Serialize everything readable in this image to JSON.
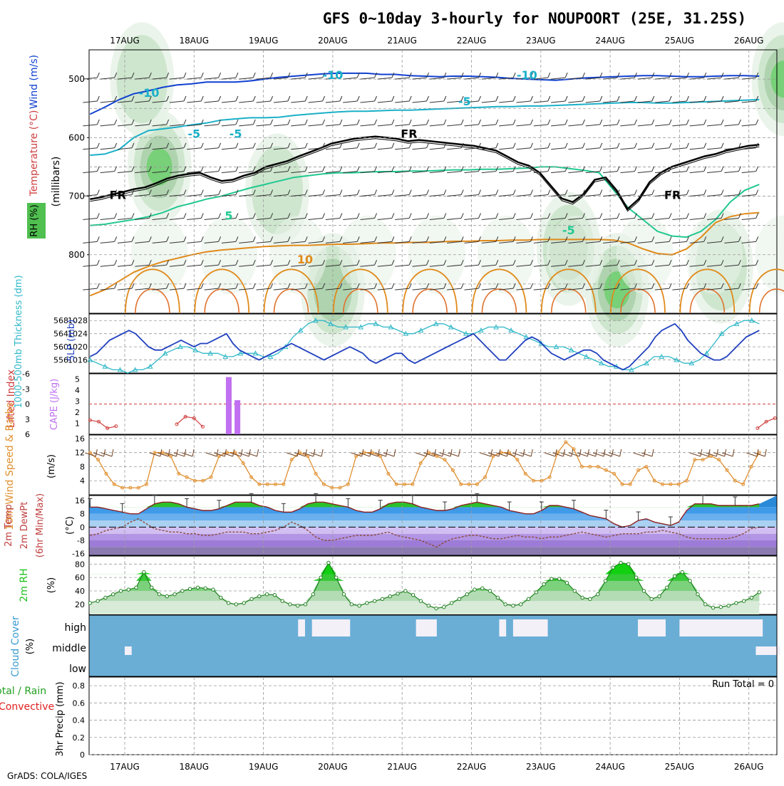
{
  "title": "GFS 0~10day 3-hourly for NOUPOORT (25E, 31.25S)",
  "credit": "GrADS: COLA/IGES",
  "colors": {
    "temp_cool": "#1040d0",
    "temp_mid": "#1ab0c8",
    "temp_warm": "#e08a1a",
    "slp": "#2040c0",
    "thickness": "#30b8c8",
    "cape": "#c070f0",
    "lifted": "#d04040",
    "wind": "#e09030",
    "rh": "#20c020",
    "cloud": "#6aaed6",
    "precip_total": "#20a020",
    "precip_conv": "#e02020"
  },
  "chart_data": [
    {
      "type": "heatmap",
      "name": "upper-air cross-section",
      "labels": {
        "left_top": "Wind (m/s)",
        "left_mid": "Temperature (°C)",
        "left_rh": "RH (%)",
        "axis": "(millibars)"
      },
      "x_ticks": [
        "17AUG",
        "18AUG",
        "19AUG",
        "20AUG",
        "21AUG",
        "22AUG",
        "23AUG",
        "24AUG",
        "25AUG",
        "26AUG"
      ],
      "y_ticks": [
        "500",
        "600",
        "700",
        "800"
      ],
      "ylim": [
        450,
        900
      ],
      "contour_labels": [
        "-10",
        "-10",
        "-5",
        "-5",
        "-5",
        "FR",
        "FR",
        "FR",
        "-5",
        "5",
        "10",
        "-10"
      ],
      "freezing_level_mb": [
        705,
        702,
        697,
        693,
        688,
        685,
        678,
        670,
        665,
        662,
        660,
        668,
        674,
        672,
        665,
        660,
        650,
        645,
        640,
        632,
        625,
        618,
        610,
        606,
        602,
        600,
        598,
        600,
        602,
        606,
        604,
        606,
        608,
        610,
        612,
        614,
        618,
        622,
        632,
        642,
        648,
        660,
        682,
        704,
        710,
        696,
        672,
        668,
        690,
        722,
        705,
        676,
        660,
        650,
        644,
        638,
        632,
        628,
        622,
        618,
        614,
        612
      ],
      "isotherms": [
        {
          "label": "-10",
          "level": "cool",
          "values": [
            560,
            548,
            535,
            525,
            520,
            514,
            510,
            508,
            505,
            505,
            505,
            503,
            500,
            497,
            495,
            493,
            491,
            490,
            490,
            490,
            492,
            492,
            494,
            495,
            496,
            495,
            495,
            496,
            497,
            499,
            500,
            501,
            502,
            500,
            498,
            497,
            496,
            495,
            494,
            494,
            495,
            496,
            496,
            495,
            494,
            494,
            495
          ]
        },
        {
          "label": "-5",
          "level": "mid",
          "values": [
            630,
            628,
            620,
            600,
            588,
            585,
            582,
            578,
            575,
            570,
            568,
            566,
            566,
            565,
            562,
            560,
            558,
            556,
            555,
            555,
            554,
            553,
            553,
            552,
            551,
            550,
            549,
            548,
            547,
            547,
            546,
            546,
            545,
            544,
            543,
            542,
            541,
            540,
            540,
            541,
            541,
            540,
            539,
            538,
            537,
            536,
            535
          ]
        },
        {
          "label": "5",
          "level": "mid2",
          "values": [
            750,
            748,
            744,
            740,
            735,
            728,
            718,
            712,
            705,
            700,
            693,
            686,
            680,
            674,
            668,
            665,
            662,
            660,
            660,
            659,
            658,
            658,
            657,
            657,
            656,
            655,
            655,
            654,
            654,
            653,
            652,
            650,
            650,
            653,
            656,
            660,
            690,
            720,
            740,
            760,
            768,
            770,
            760,
            740,
            710,
            690,
            680
          ]
        },
        {
          "label": "10",
          "level": "warm",
          "values": [
            870,
            860,
            845,
            830,
            820,
            812,
            806,
            800,
            795,
            792,
            790,
            788,
            786,
            785,
            784,
            784,
            783,
            782,
            782,
            781,
            780,
            780,
            779,
            779,
            778,
            777,
            777,
            776,
            776,
            775,
            775,
            774,
            774,
            774,
            774,
            774,
            775,
            780,
            790,
            798,
            800,
            790,
            770,
            745,
            735,
            730,
            728
          ]
        }
      ],
      "rh_blobs": [
        {
          "day": 0.5,
          "mb": 650,
          "intensity": 3
        },
        {
          "day": 0.25,
          "mb": 500,
          "intensity": 1
        },
        {
          "day": 2.2,
          "mb": 690,
          "intensity": 1
        },
        {
          "day": 3.0,
          "mb": 860,
          "intensity": 2
        },
        {
          "day": 7.1,
          "mb": 860,
          "intensity": 3
        },
        {
          "day": 6.4,
          "mb": 790,
          "intensity": 2
        },
        {
          "day": 9.5,
          "mb": 500,
          "intensity": 3
        },
        {
          "day": 8.6,
          "mb": 820,
          "intensity": 1
        }
      ]
    },
    {
      "type": "line",
      "name": "SLP / thickness",
      "labels": {
        "left": "1000-500mb Thickness (dm)",
        "right": "SLP (mb)"
      },
      "slp_ticks": [
        "1028",
        "1024",
        "1020",
        "1016"
      ],
      "slp_ylim": [
        1012,
        1030
      ],
      "thickness_ticks": [
        "568",
        "564",
        "560",
        "556"
      ],
      "thickness_ylim": [
        552,
        570
      ],
      "slp": [
        1017,
        1018,
        1020,
        1022,
        1023,
        1024,
        1025,
        1024,
        1022,
        1020,
        1019,
        1019,
        1020,
        1021,
        1022,
        1021,
        1020,
        1021,
        1021,
        1022,
        1023,
        1024,
        1021,
        1019,
        1018,
        1017,
        1016,
        1017,
        1018,
        1019,
        1020,
        1021,
        1020,
        1019,
        1018,
        1017,
        1016,
        1017,
        1018,
        1019,
        1020,
        1019,
        1018,
        1016,
        1015,
        1016,
        1017,
        1018,
        1018,
        1016,
        1015,
        1016,
        1017,
        1018,
        1019,
        1020,
        1021,
        1022,
        1023,
        1024,
        1022,
        1020,
        1018,
        1016,
        1016,
        1018,
        1020,
        1022,
        1023,
        1022,
        1020,
        1018,
        1017,
        1016,
        1017,
        1018,
        1019,
        1019,
        1018,
        1016,
        1015,
        1014,
        1013,
        1014,
        1016,
        1018,
        1020,
        1023,
        1025,
        1026,
        1027,
        1025,
        1022,
        1020,
        1018,
        1017,
        1016,
        1016,
        1017,
        1019,
        1021,
        1023,
        1024,
        1025
      ],
      "thickness": [
        556,
        555,
        554,
        553,
        553,
        552,
        553,
        553,
        554,
        556,
        558,
        559,
        560,
        560,
        559,
        558,
        558,
        558,
        557,
        557,
        558,
        558,
        558,
        557,
        557,
        558,
        560,
        563,
        565,
        567,
        568,
        568,
        567,
        566,
        566,
        566,
        566,
        567,
        567,
        566,
        566,
        565,
        564,
        564,
        565,
        566,
        567,
        567,
        566,
        565,
        564,
        564,
        565,
        566,
        566,
        566,
        565,
        564,
        563,
        562,
        561,
        560,
        560,
        560,
        559,
        558,
        557,
        556,
        555,
        554,
        554,
        553,
        553,
        554,
        555,
        557,
        557,
        557,
        556,
        555,
        555,
        556,
        558,
        561,
        564,
        566,
        567,
        568,
        568,
        567
      ]
    },
    {
      "type": "bar",
      "name": "CAPE / Lifted Index",
      "labels": {
        "left": "Lifted Index",
        "right": "CAPE (J/kg)"
      },
      "li_ticks": [
        "-6",
        "-3",
        "0",
        "3",
        "6"
      ],
      "cape_ticks": [
        "5",
        "4",
        "3",
        "2",
        "1"
      ],
      "cape_ylim": [
        0,
        5.5
      ],
      "cape_bars": [
        {
          "day": 1.5,
          "value": 5.2
        },
        {
          "day": 1.625,
          "value": 3.1
        }
      ],
      "lifted_index": [
        {
          "day": 0.0,
          "value": 3.2
        },
        {
          "day": 0.125,
          "value": 3.5
        },
        {
          "day": 0.25,
          "value": 4.8
        },
        {
          "day": 0.375,
          "value": 4.4
        },
        {
          "day": 1.25,
          "value": 4.0
        },
        {
          "day": 1.375,
          "value": 2.5
        },
        {
          "day": 1.5,
          "value": 2.8
        },
        {
          "day": 1.625,
          "value": 4.5
        },
        {
          "day": 9.625,
          "value": 4.8
        },
        {
          "day": 9.75,
          "value": 3.5
        },
        {
          "day": 9.875,
          "value": 2.8
        }
      ],
      "zero_line": "0"
    },
    {
      "type": "line",
      "name": "10m wind speed",
      "labels": {
        "left": "10m Wind Speed & Barbs",
        "unit": "(m/s)"
      },
      "yticks": [
        "16",
        "12",
        "8",
        "4"
      ],
      "ylim": [
        0,
        17
      ],
      "values": [
        12,
        10,
        6,
        3,
        2,
        2,
        2,
        3,
        12,
        12,
        11,
        6,
        5,
        4,
        4,
        5,
        11,
        12,
        12,
        9,
        5,
        3,
        3,
        3,
        3,
        10,
        12,
        11,
        6,
        3,
        2,
        2,
        3,
        11,
        12,
        12,
        11,
        6,
        3,
        3,
        3,
        9,
        12,
        11,
        10,
        7,
        3,
        3,
        3,
        5,
        11,
        12,
        12,
        10,
        6,
        4,
        4,
        5,
        12,
        15,
        13,
        8,
        8,
        8,
        7,
        6,
        3,
        3,
        7,
        8,
        4,
        3,
        3,
        3,
        4,
        10,
        10,
        11,
        10,
        7,
        4,
        3,
        8,
        12
      ]
    },
    {
      "type": "area",
      "name": "2m temperature",
      "labels": {
        "left": "2m Temp 2m DewPt (6hr Min/Max)",
        "unit": "(°C)"
      },
      "yticks": [
        "16",
        "8",
        "0",
        "-8",
        "-16"
      ],
      "ylim": [
        -17,
        19
      ],
      "temp": [
        12,
        12,
        11,
        10,
        9,
        8,
        8,
        11,
        14,
        15,
        15,
        14,
        12,
        11,
        10,
        10,
        11,
        13,
        15,
        15,
        15,
        13,
        12,
        10,
        9,
        9,
        11,
        14,
        15,
        15,
        14,
        13,
        12,
        10,
        9,
        9,
        11,
        14,
        15,
        15,
        14,
        12,
        11,
        10,
        10,
        11,
        13,
        14,
        15,
        14,
        13,
        12,
        10,
        9,
        8,
        8,
        10,
        13,
        13,
        12,
        11,
        9,
        7,
        6,
        5,
        2,
        0,
        1,
        4,
        5,
        3,
        2,
        1,
        3,
        10,
        14,
        14,
        14,
        13,
        13,
        13,
        13,
        13,
        14
      ],
      "dewpt": [
        -5,
        -4,
        -2,
        -1,
        0,
        3,
        5,
        2,
        -1,
        -2,
        -3,
        -3,
        -4,
        -4,
        -5,
        -5,
        -4,
        -3,
        -3,
        -3,
        -4,
        -4,
        -3,
        -2,
        0,
        3,
        1,
        -2,
        -6,
        -8,
        -8,
        -7,
        -6,
        -5,
        -5,
        -5,
        -4,
        -3,
        -5,
        -6,
        -7,
        -8,
        -10,
        -12,
        -9,
        -7,
        -6,
        -5,
        -5,
        -6,
        -7,
        -7,
        -6,
        -5,
        -6,
        -6,
        -7,
        -6,
        -6,
        -5,
        -4,
        -3,
        -4,
        -5,
        -6,
        -5,
        -4,
        -4,
        -4,
        -3,
        -3,
        -2,
        -3,
        -4,
        -6,
        -7,
        -7,
        -7,
        -7,
        -7,
        -6,
        -4,
        -1,
        0
      ]
    },
    {
      "type": "area",
      "name": "2m relative humidity",
      "labels": {
        "left": "2m RH",
        "unit": "(%)"
      },
      "yticks": [
        "80",
        "60",
        "40",
        "20"
      ],
      "ylim": [
        5,
        92
      ],
      "values": [
        22,
        25,
        30,
        35,
        40,
        42,
        45,
        68,
        45,
        35,
        32,
        35,
        40,
        43,
        45,
        44,
        42,
        30,
        22,
        20,
        22,
        28,
        32,
        35,
        34,
        25,
        20,
        18,
        20,
        35,
        60,
        82,
        60,
        35,
        20,
        18,
        22,
        25,
        28,
        32,
        36,
        40,
        34,
        25,
        18,
        14,
        16,
        22,
        28,
        35,
        42,
        44,
        40,
        30,
        20,
        18,
        20,
        28,
        38,
        50,
        58,
        58,
        52,
        40,
        30,
        28,
        35,
        55,
        75,
        82,
        80,
        60,
        40,
        28,
        32,
        45,
        62,
        68,
        55,
        35,
        20,
        15,
        16,
        18,
        22,
        25,
        30,
        38
      ]
    },
    {
      "type": "area",
      "name": "cloud cover",
      "labels": {
        "left": "Cloud Cover",
        "unit": "(%)",
        "high": "high",
        "middle": "middle",
        "low": "low"
      },
      "high_gaps": [
        {
          "day": 3.2,
          "width": 0.55
        },
        {
          "day": 3.0,
          "width": 0.1
        },
        {
          "day": 4.7,
          "width": 0.3
        },
        {
          "day": 5.9,
          "width": 0.1
        },
        {
          "day": 6.1,
          "width": 0.5
        },
        {
          "day": 7.9,
          "width": 0.4
        },
        {
          "day": 8.5,
          "width": 1.2
        }
      ],
      "mid_gaps": [
        {
          "day": 0.5,
          "width": 0.1
        },
        {
          "day": 9.6,
          "width": 0.35
        }
      ]
    },
    {
      "type": "bar",
      "name": "3hr precipitation",
      "labels": {
        "left": "3hr Precip (mm)",
        "total": "Total / Rain",
        "conv": "Convective",
        "run_total": "Run Total = 0"
      },
      "yticks": [
        "0.8",
        "0.6",
        "0.4",
        "0.2",
        "0"
      ],
      "ylim": [
        0,
        0.9
      ],
      "values": []
    }
  ]
}
